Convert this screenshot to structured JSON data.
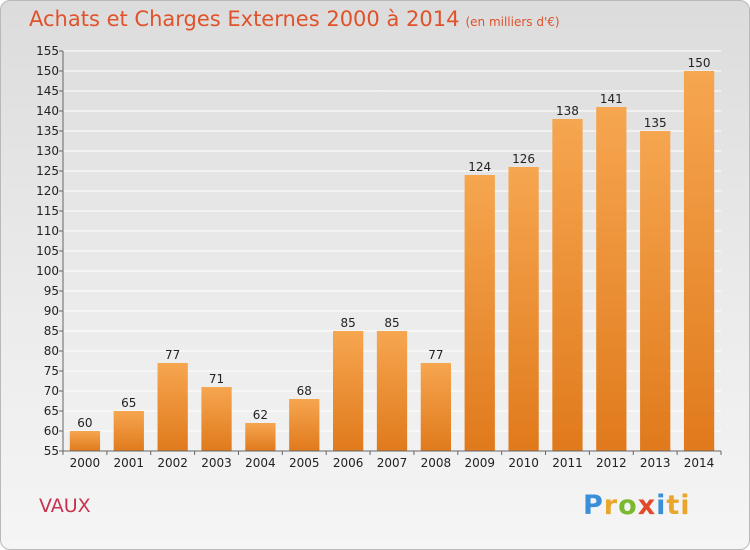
{
  "header": {
    "title": "Achats et Charges Externes 2000 à 2014",
    "subtitle": "(en milliers d'€)"
  },
  "footer": {
    "place": "VAUX",
    "logo_letters": [
      "P",
      "r",
      "o",
      "x",
      "i",
      "ti"
    ]
  },
  "colors": {
    "bar_light": "#f6a650",
    "bar_dark": "#e07a1c",
    "title": "#e0522a",
    "place": "#c8324e",
    "grid": "#ffffff"
  },
  "chart_data": {
    "type": "bar",
    "title": "Achats et Charges Externes 2000 à 2014",
    "subtitle": "(en milliers d'€)",
    "categories": [
      "2000",
      "2001",
      "2002",
      "2003",
      "2004",
      "2005",
      "2006",
      "2007",
      "2008",
      "2009",
      "2010",
      "2011",
      "2012",
      "2013",
      "2014"
    ],
    "values": [
      60,
      65,
      77,
      71,
      62,
      68,
      85,
      85,
      77,
      124,
      126,
      138,
      141,
      135,
      150
    ],
    "ylim": [
      55,
      155
    ],
    "ytick_step": 5,
    "grid": true,
    "data_labels": true
  }
}
